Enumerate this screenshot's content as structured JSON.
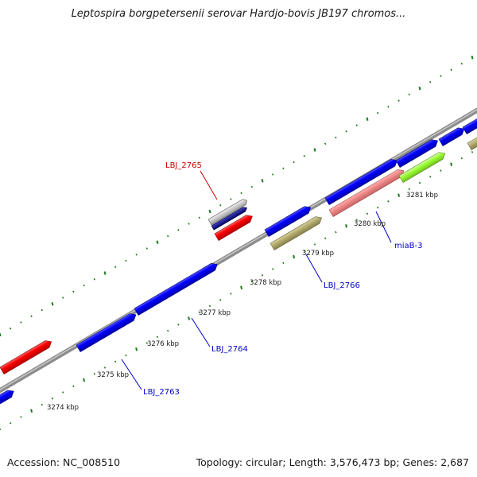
{
  "title": "Leptospira borgpetersenii serovar Hardjo-bovis JB197 chromos...",
  "footer": {
    "accession": "Accession: NC_008510",
    "stats": "Topology: circular; Length: 3,576,473 bp; Genes: 2,687"
  },
  "colors": {
    "backbone": "#8c8c8c",
    "tick": "#1a7a1a",
    "cds": "#0000ff",
    "rrna": "#ff0000",
    "misc": "#b5ad70",
    "pink": "#f08a8a",
    "lime": "#99ff33",
    "label_blue": "#0000cc",
    "label_red": "#cc0000"
  },
  "scale_labels": [
    "3274 kbp",
    "3275 kbp",
    "3276 kbp",
    "3277 kbp",
    "3278 kbp",
    "3279 kbp",
    "3280 kbp",
    "3281 kbp"
  ],
  "gene_labels": [
    {
      "text": "LBJ_2765",
      "color": "red"
    },
    {
      "text": "miaB-3",
      "color": "blue"
    },
    {
      "text": "LBJ_2766",
      "color": "blue"
    },
    {
      "text": "LBJ_2764",
      "color": "blue"
    },
    {
      "text": "LBJ_2763",
      "color": "blue"
    }
  ]
}
